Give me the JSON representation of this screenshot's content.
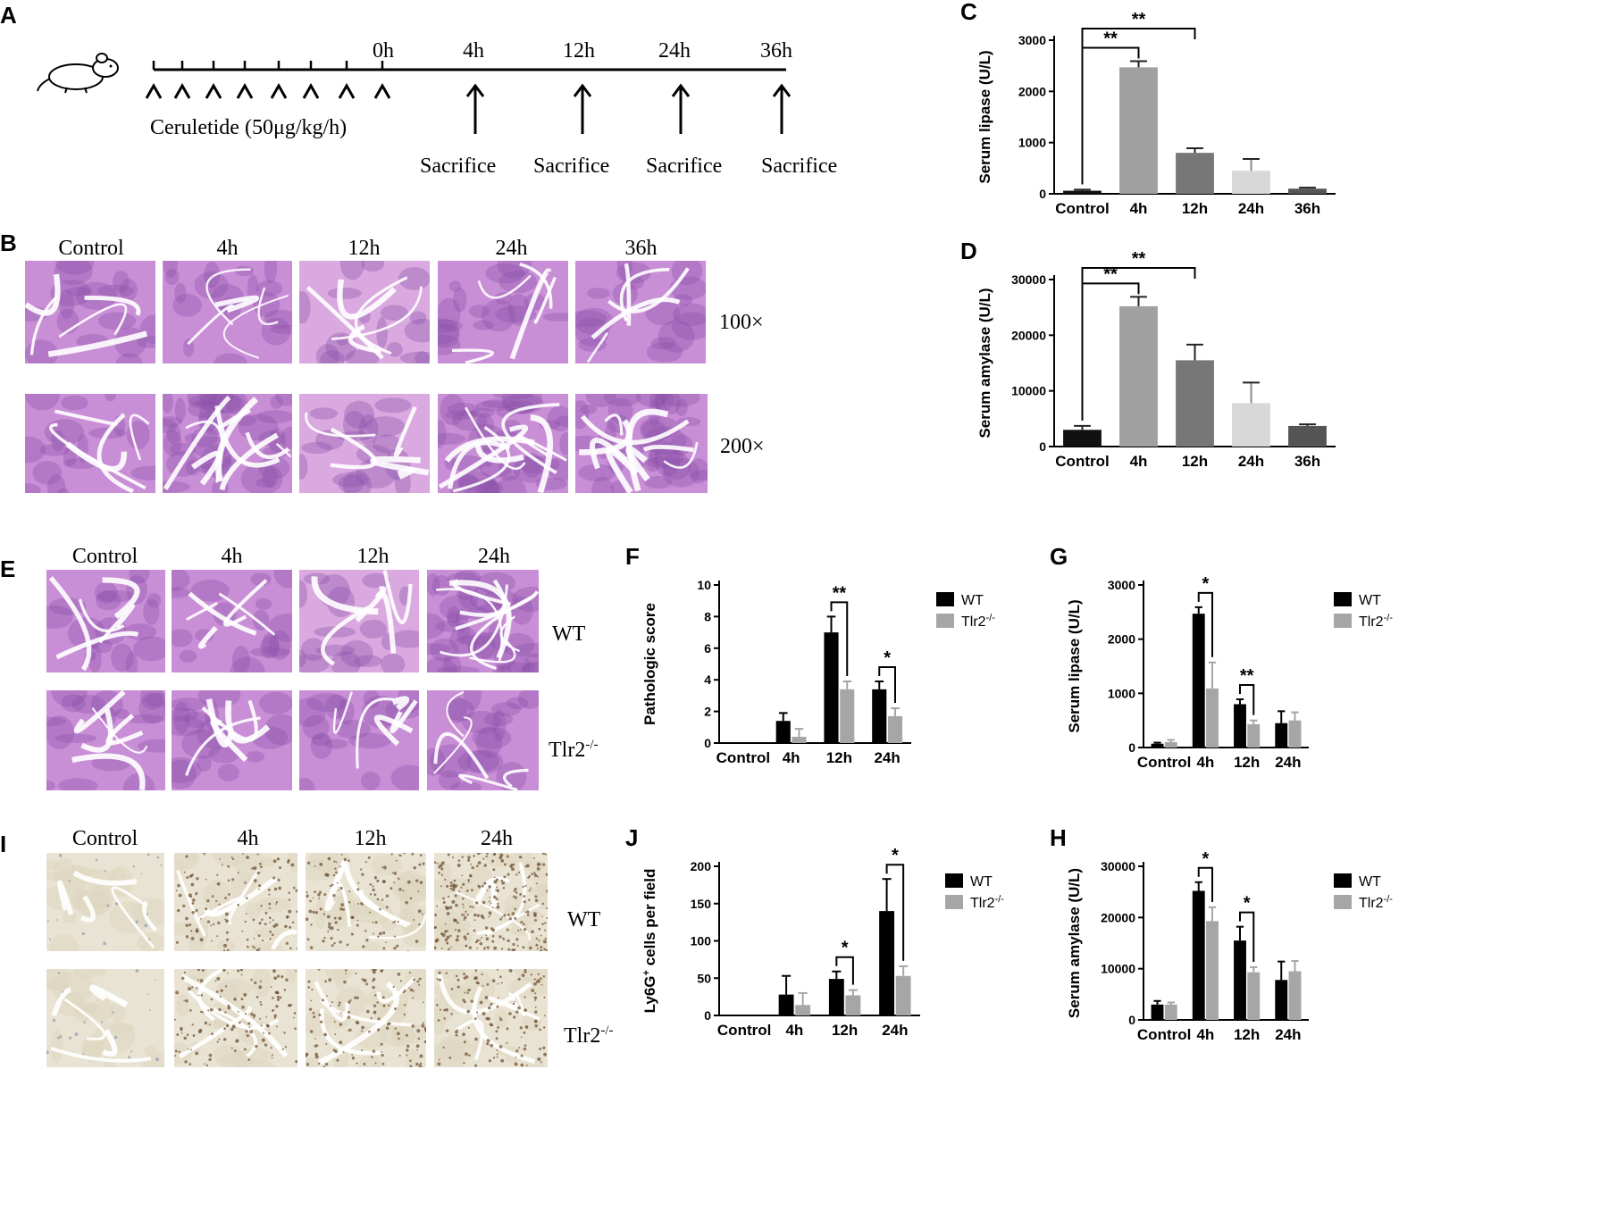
{
  "panels": {
    "A": {
      "letter": "A",
      "timeline_labels": [
        "0h",
        "4h",
        "12h",
        "24h",
        "36h"
      ],
      "injection_label": "Ceruletide (50μg/kg/h)",
      "sacrifice_labels": [
        "Sacrifice",
        "Sacrifice",
        "Sacrifice",
        "Sacrifice"
      ]
    },
    "B": {
      "letter": "B",
      "columns": [
        "Control",
        "4h",
        "12h",
        "24h",
        "36h"
      ],
      "row_labels": [
        "100×",
        "200×"
      ]
    },
    "E": {
      "letter": "E",
      "columns": [
        "Control",
        "4h",
        "12h",
        "24h"
      ],
      "row_labels": [
        "WT",
        "Tlr2-/-"
      ]
    },
    "I": {
      "letter": "I",
      "columns": [
        "Control",
        "4h",
        "12h",
        "24h"
      ],
      "row_labels": [
        "WT",
        "Tlr2-/-"
      ]
    }
  },
  "colors": {
    "he_bg": "#c98fd6",
    "he_dark": "#8a4fa8",
    "ihc_bg": "#e9e3d3",
    "ihc_dot": "#6b4a2b",
    "wt": "#000000",
    "ko": "#a6a6a6"
  },
  "chart_data": [
    {
      "id": "C",
      "letter": "C",
      "type": "bar",
      "ylabel": "Serum lipase (U/L)",
      "categories": [
        "Control",
        "4h",
        "12h",
        "24h",
        "36h"
      ],
      "values": [
        60,
        2470,
        800,
        450,
        100
      ],
      "errors": [
        20,
        120,
        90,
        230,
        20
      ],
      "bar_colors": [
        "#111111",
        "#a0a0a0",
        "#777777",
        "#d8d8d8",
        "#555555"
      ],
      "yticks": [
        0,
        1000,
        2000,
        3000
      ],
      "ylim": [
        0,
        3000
      ],
      "sig": [
        {
          "from": 0,
          "to": 1,
          "label": "**"
        },
        {
          "from": 0,
          "to": 2,
          "label": "**"
        }
      ]
    },
    {
      "id": "D",
      "letter": "D",
      "type": "bar",
      "ylabel": "Serum amylase (U/L)",
      "categories": [
        "Control",
        "4h",
        "12h",
        "24h",
        "36h"
      ],
      "values": [
        3000,
        25200,
        15500,
        7800,
        3700
      ],
      "errors": [
        700,
        1700,
        2800,
        3700,
        300
      ],
      "bar_colors": [
        "#111111",
        "#a0a0a0",
        "#777777",
        "#d8d8d8",
        "#555555"
      ],
      "yticks": [
        0,
        10000,
        20000,
        30000
      ],
      "ylim": [
        0,
        30000
      ],
      "sig": [
        {
          "from": 0,
          "to": 1,
          "label": "**"
        },
        {
          "from": 0,
          "to": 2,
          "label": "**"
        }
      ]
    },
    {
      "id": "F",
      "letter": "F",
      "type": "bar",
      "ylabel": "Pathologic score",
      "categories": [
        "Control",
        "4h",
        "12h",
        "24h"
      ],
      "series": [
        {
          "name": "WT",
          "values": [
            0,
            1.4,
            7.0,
            3.4
          ],
          "errors": [
            0,
            0.5,
            1.0,
            0.5
          ]
        },
        {
          "name": "Tlr2-/-",
          "values": [
            0,
            0.4,
            3.4,
            1.7
          ],
          "errors": [
            0,
            0.5,
            0.5,
            0.5
          ]
        }
      ],
      "yticks": [
        0,
        2,
        4,
        6,
        8,
        10
      ],
      "ylim": [
        0,
        10
      ],
      "sig": [
        {
          "cat": 2,
          "label": "**"
        },
        {
          "cat": 3,
          "label": "*"
        }
      ]
    },
    {
      "id": "G",
      "letter": "G",
      "type": "bar",
      "ylabel": "Serum lipase (U/L)",
      "categories": [
        "Control",
        "4h",
        "12h",
        "24h"
      ],
      "series": [
        {
          "name": "WT",
          "values": [
            70,
            2470,
            800,
            450
          ],
          "errors": [
            20,
            120,
            90,
            220
          ]
        },
        {
          "name": "Tlr2-/-",
          "values": [
            100,
            1090,
            430,
            500
          ],
          "errors": [
            40,
            480,
            70,
            150
          ]
        }
      ],
      "yticks": [
        0,
        1000,
        2000,
        3000
      ],
      "ylim": [
        0,
        3000
      ],
      "sig": [
        {
          "cat": 1,
          "label": "*"
        },
        {
          "cat": 2,
          "label": "**"
        }
      ]
    },
    {
      "id": "J",
      "letter": "J",
      "type": "bar",
      "ylabel": "Ly6G+ cells per field",
      "categories": [
        "Control",
        "4h",
        "12h",
        "24h"
      ],
      "series": [
        {
          "name": "WT",
          "values": [
            0,
            28,
            49,
            140
          ],
          "errors": [
            0,
            25,
            10,
            43
          ]
        },
        {
          "name": "Tlr2-/-",
          "values": [
            0,
            14,
            27,
            53
          ],
          "errors": [
            0,
            16,
            7,
            13
          ]
        }
      ],
      "yticks": [
        0,
        50,
        100,
        150,
        200
      ],
      "ylim": [
        0,
        200
      ],
      "sig": [
        {
          "cat": 2,
          "label": "*"
        },
        {
          "cat": 3,
          "label": "*"
        }
      ]
    },
    {
      "id": "H",
      "letter": "H",
      "type": "bar",
      "ylabel": "Serum amylase (U/L)",
      "categories": [
        "Control",
        "4h",
        "12h",
        "24h"
      ],
      "series": [
        {
          "name": "WT",
          "values": [
            3000,
            25200,
            15500,
            7800
          ],
          "errors": [
            700,
            1700,
            2700,
            3600
          ]
        },
        {
          "name": "Tlr2-/-",
          "values": [
            3000,
            19300,
            9300,
            9500
          ],
          "errors": [
            400,
            2700,
            1000,
            2000
          ]
        }
      ],
      "yticks": [
        0,
        10000,
        20000,
        30000
      ],
      "ylim": [
        0,
        30000
      ],
      "sig": [
        {
          "cat": 1,
          "label": "*"
        },
        {
          "cat": 2,
          "label": "*"
        }
      ]
    }
  ]
}
